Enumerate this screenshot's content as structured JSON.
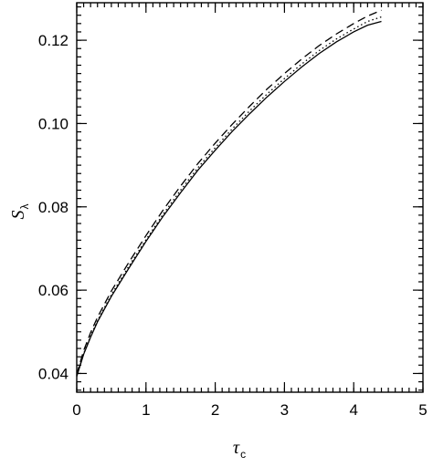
{
  "chart_data": {
    "type": "line",
    "xlabel": "τ",
    "xlabel_sub": "c",
    "ylabel": "S",
    "ylabel_sub": "λ",
    "xlim": [
      0,
      5
    ],
    "ylim": [
      0.0355,
      0.129
    ],
    "x_ticks": [
      0,
      1,
      2,
      3,
      4,
      5
    ],
    "x_tick_labels": [
      "0",
      "1",
      "2",
      "3",
      "4",
      "5"
    ],
    "x_minor_step": 0.1,
    "y_ticks": [
      0.04,
      0.06,
      0.08,
      0.1,
      0.12
    ],
    "y_tick_labels": [
      "0.04",
      "0.06",
      "0.08",
      "0.10",
      "0.12"
    ],
    "y_minor_step": 0.002,
    "grid": false,
    "series": [
      {
        "style": "solid",
        "x": [
          0,
          0.1,
          0.2,
          0.3,
          0.5,
          0.75,
          1.0,
          1.25,
          1.5,
          1.75,
          2.0,
          2.25,
          2.5,
          2.75,
          3.0,
          3.25,
          3.5,
          3.75,
          4.0,
          4.2,
          4.4
        ],
        "y": [
          0.0393,
          0.0446,
          0.0487,
          0.0524,
          0.0585,
          0.0652,
          0.0717,
          0.0778,
          0.0834,
          0.0888,
          0.0936,
          0.0982,
          0.1024,
          0.1064,
          0.1101,
          0.1136,
          0.1168,
          0.1196,
          0.122,
          0.1236,
          0.1245
        ]
      },
      {
        "style": "dotted",
        "x": [
          0,
          0.1,
          0.2,
          0.3,
          0.5,
          0.75,
          1.0,
          1.25,
          1.5,
          1.75,
          2.0,
          2.25,
          2.5,
          2.75,
          3.0,
          3.25,
          3.5,
          3.75,
          4.0,
          4.2,
          4.4
        ],
        "y": [
          0.0395,
          0.0448,
          0.049,
          0.0527,
          0.0589,
          0.0657,
          0.0721,
          0.0783,
          0.084,
          0.0894,
          0.0942,
          0.0988,
          0.1031,
          0.1071,
          0.1108,
          0.1143,
          0.1175,
          0.1203,
          0.1227,
          0.1245,
          0.1256
        ]
      },
      {
        "style": "dashed",
        "x": [
          0,
          0.1,
          0.2,
          0.3,
          0.5,
          0.75,
          1.0,
          1.25,
          1.5,
          1.75,
          2.0,
          2.25,
          2.5,
          2.75,
          3.0,
          3.25,
          3.5,
          3.75,
          4.0,
          4.2,
          4.4
        ],
        "y": [
          0.0398,
          0.0455,
          0.0498,
          0.0535,
          0.0598,
          0.0666,
          0.0731,
          0.0793,
          0.085,
          0.0904,
          0.0953,
          0.0999,
          0.1042,
          0.1083,
          0.112,
          0.1155,
          0.1187,
          0.1215,
          0.124,
          0.1258,
          0.1272
        ]
      }
    ]
  }
}
